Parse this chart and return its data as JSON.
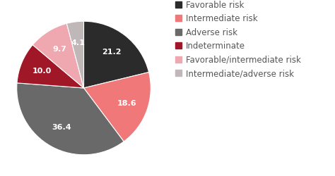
{
  "labels": [
    "Favorable risk",
    "Intermediate risk",
    "Adverse risk",
    "Indeterminate",
    "Favorable/intermediate risk",
    "Intermediate/adverse risk"
  ],
  "values": [
    21.2,
    18.6,
    36.4,
    10.0,
    9.7,
    4.1
  ],
  "colors": [
    "#2b2b2b",
    "#f07878",
    "#696969",
    "#a01828",
    "#f0a8b0",
    "#c0b8b8"
  ],
  "startangle": 90,
  "label_colors": [
    "white",
    "white",
    "white",
    "white",
    "white",
    "white"
  ],
  "background_color": "#ffffff",
  "legend_fontsize": 8.5,
  "autopct_fontsize": 8
}
